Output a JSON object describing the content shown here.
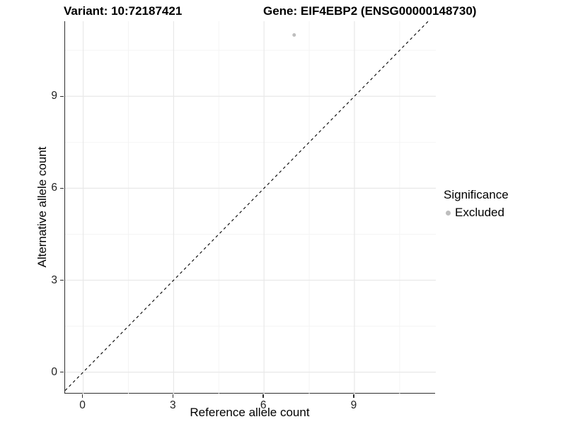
{
  "chart_data": {
    "type": "scatter",
    "title_left": "Variant: 10:72187421",
    "title_right": "Gene: EIF4EBP2 (ENSG00000148730)",
    "xlabel": "Reference allele count",
    "ylabel": "Alternative allele count",
    "xlim": [
      -0.6,
      11.7
    ],
    "ylim": [
      -0.7,
      11.45
    ],
    "x_ticks": [
      0,
      3,
      6,
      9
    ],
    "y_ticks": [
      0,
      3,
      6,
      9
    ],
    "x_minor_ticks": [
      1.5,
      4.5,
      7.5,
      10.5
    ],
    "y_minor_ticks": [
      1.5,
      4.5,
      7.5,
      10.5
    ],
    "grid": "on",
    "legend_position": "right",
    "reference_line": {
      "slope": 1,
      "intercept": 0,
      "style": "dashed",
      "color": "#000000"
    },
    "series": [
      {
        "name": "Excluded",
        "color": "#bebebe",
        "points": [
          [
            7,
            11
          ]
        ]
      }
    ],
    "legend": {
      "title": "Significance",
      "items": [
        {
          "label": "Excluded",
          "color": "#bebebe"
        }
      ]
    }
  },
  "colors": {
    "background": "#ffffff",
    "grid_major": "#e8e8e8",
    "grid_minor": "#f3f3f3",
    "axis_line": "#2f2f2f",
    "point": "#bebebe",
    "reference_line": "#000000",
    "text": "#000000"
  }
}
